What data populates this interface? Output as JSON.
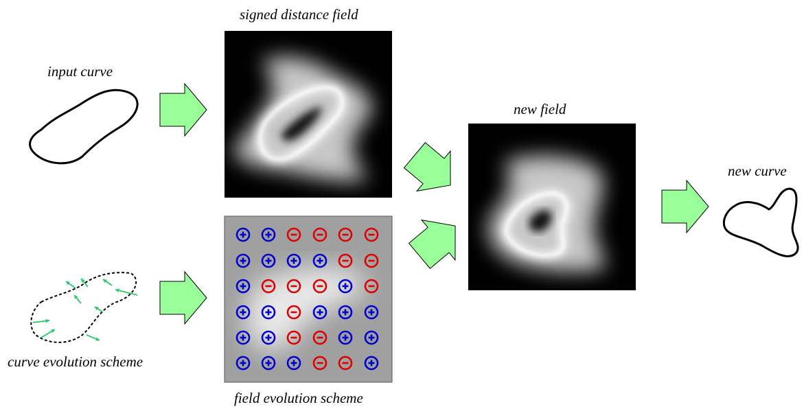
{
  "labels": {
    "input_curve": "input curve",
    "signed_distance_field": "signed distance field",
    "new_field": "new field",
    "new_curve": "new curve",
    "curve_evolution_scheme": "curve evolution scheme",
    "field_evolution_scheme": "field evolution scheme"
  },
  "colors": {
    "arrow_fill": "#99ff99",
    "plus_sign": "#0000cc",
    "minus_sign": "#dd0000",
    "evolution_vector": "#22cc66",
    "field_background": "#000000",
    "scheme_background": "#a0a0a0"
  },
  "sign_grid": [
    [
      "+",
      "+",
      "-",
      "-",
      "-",
      "-"
    ],
    [
      "+",
      "+",
      "+",
      "+",
      "-",
      "-"
    ],
    [
      "+",
      "-",
      "-",
      "-",
      "+",
      "-"
    ],
    [
      "+",
      "+",
      "-",
      "+",
      "+",
      "+"
    ],
    [
      "+",
      "+",
      "-",
      "-",
      "+",
      "+"
    ],
    [
      "+",
      "+",
      "+",
      "-",
      "-",
      "+"
    ]
  ]
}
